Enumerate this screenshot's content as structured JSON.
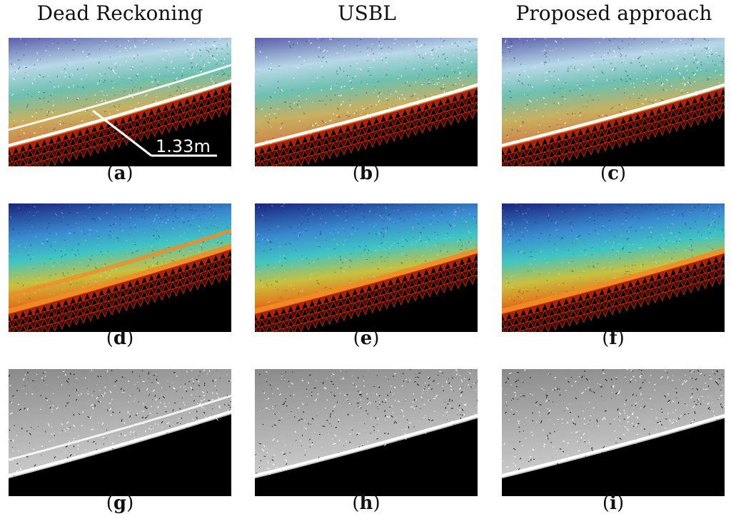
{
  "columns": [
    {
      "title": "Dead Reckoning"
    },
    {
      "title": "USBL"
    },
    {
      "title": "Proposed approach"
    }
  ],
  "panels": [
    {
      "letter": "a",
      "row": "texture",
      "col": 0,
      "annotation": "1.33m"
    },
    {
      "letter": "b",
      "row": "texture",
      "col": 1
    },
    {
      "letter": "c",
      "row": "texture",
      "col": 2
    },
    {
      "letter": "d",
      "row": "depth",
      "col": 0
    },
    {
      "letter": "e",
      "row": "depth",
      "col": 1
    },
    {
      "letter": "f",
      "row": "depth",
      "col": 2
    },
    {
      "letter": "g",
      "row": "binary",
      "col": 0
    },
    {
      "letter": "h",
      "row": "binary",
      "col": 1
    },
    {
      "letter": "i",
      "row": "binary",
      "col": 2
    }
  ],
  "caption_format": {
    "open": "(",
    "close": ")"
  },
  "colors": {
    "deep": "#1a237e",
    "mid": "#40c4c4",
    "shallow": "#c8c040",
    "edge": "#e03010",
    "background": "#000000"
  }
}
